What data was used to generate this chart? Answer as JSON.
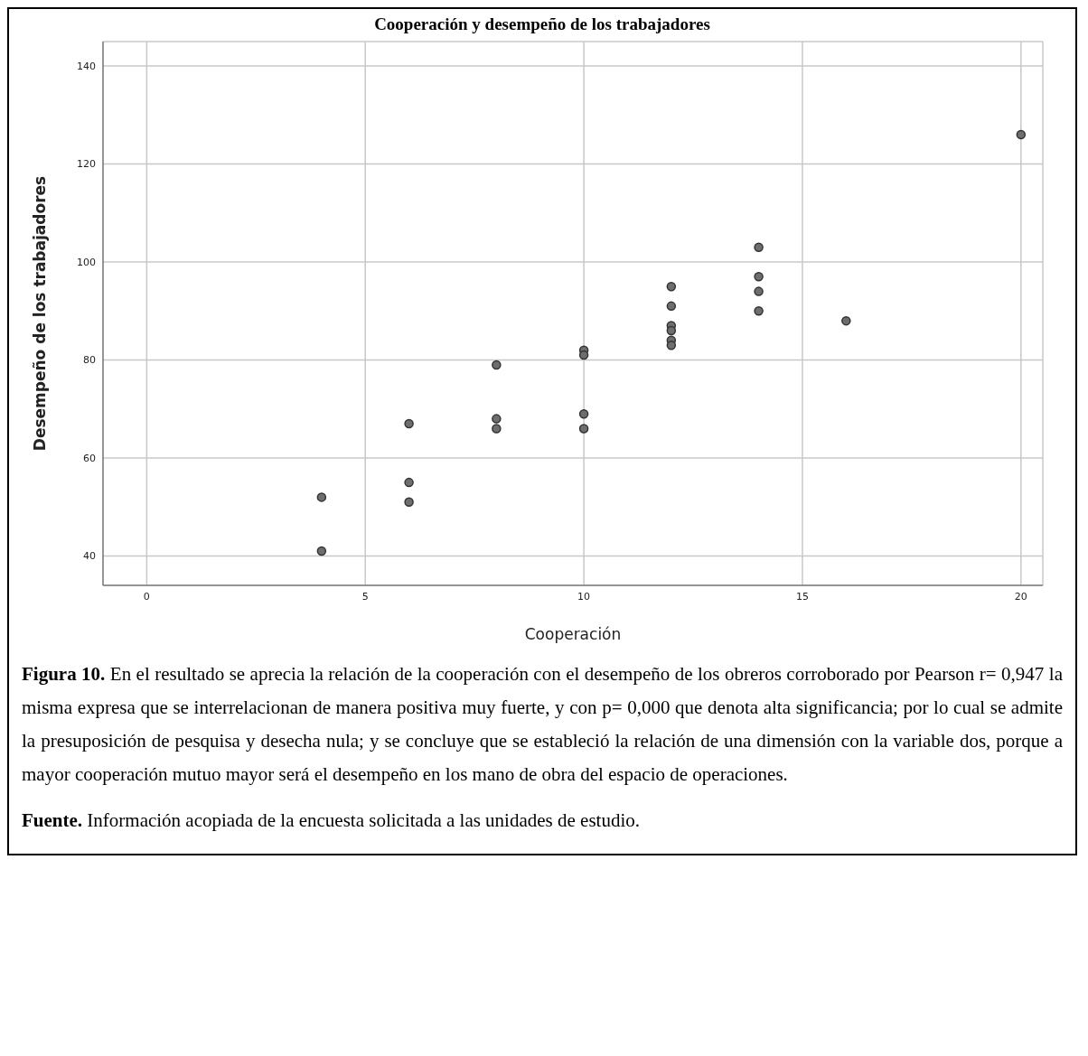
{
  "chart_data": {
    "type": "scatter",
    "title": "Cooperación y desempeño de los trabajadores",
    "xlabel": "Cooperación",
    "ylabel": "Desempeño de los trabajadores",
    "series": [
      {
        "color": "#6e6e6e",
        "x": [
          4,
          4,
          6,
          6,
          6,
          8,
          8,
          8,
          10,
          10,
          10,
          10,
          12,
          12,
          12,
          12,
          12,
          12,
          14,
          14,
          14,
          14,
          16,
          20
        ],
        "values": [
          52,
          41,
          67,
          55,
          51,
          79,
          68,
          66,
          82,
          81,
          69,
          66,
          95,
          91,
          87,
          86,
          84,
          83,
          103,
          97,
          94,
          90,
          88,
          126
        ]
      }
    ],
    "xlim": [
      -1,
      20.5
    ],
    "xticks": [
      0,
      5,
      10,
      15,
      20
    ],
    "ylim": [
      34,
      145
    ],
    "yticks": [
      40,
      60,
      80,
      100,
      120,
      140
    ],
    "grid": true,
    "marker": "circle",
    "annotations": [
      "Figura 10. En el resultado se aprecia la relación de la cooperación con el desempeño de los obreros corroborado por Pearson r= 0,947 la misma expresa que se interrelacionan de manera positiva muy fuerte, y con p= 0,000 que denota alta significancia; por lo cual se admite la presuposición de pesquisa y desecha nula; y se concluye que se estableció la relación de una dimensión con la variable dos, porque a mayor cooperación mutuo mayor será el desempeño en los mano de obra del espacio de operaciones.",
      "Fuente. Información acopiada de la encuesta solicitada a las unidades de estudio."
    ]
  }
}
